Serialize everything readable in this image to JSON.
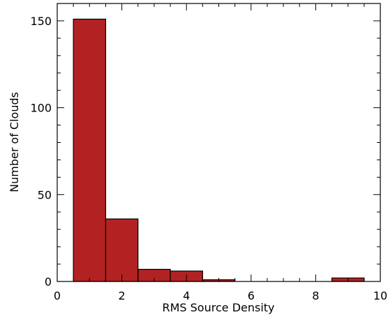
{
  "chart_data": {
    "type": "bar",
    "title": "",
    "xlabel": "RMS Source Density",
    "ylabel": "Number of Clouds",
    "xlim": [
      0,
      10
    ],
    "ylim": [
      0,
      160
    ],
    "grid": false,
    "bar_color": "#b22222",
    "bar_edge_color": "#000000",
    "bin_width": 1,
    "bins": [
      {
        "center": 1,
        "value": 151
      },
      {
        "center": 2,
        "value": 36
      },
      {
        "center": 3,
        "value": 7
      },
      {
        "center": 4,
        "value": 6
      },
      {
        "center": 5,
        "value": 1
      },
      {
        "center": 6,
        "value": 0
      },
      {
        "center": 7,
        "value": 0
      },
      {
        "center": 8,
        "value": 0
      },
      {
        "center": 9,
        "value": 2
      }
    ],
    "x_ticks": [
      {
        "value": 0,
        "label": "0"
      },
      {
        "value": 2,
        "label": "2"
      },
      {
        "value": 4,
        "label": "4"
      },
      {
        "value": 6,
        "label": "6"
      },
      {
        "value": 8,
        "label": "8"
      },
      {
        "value": 10,
        "label": "10"
      }
    ],
    "y_ticks": [
      {
        "value": 0,
        "label": "0"
      },
      {
        "value": 50,
        "label": "50"
      },
      {
        "value": 100,
        "label": "100"
      },
      {
        "value": 150,
        "label": "150"
      }
    ]
  }
}
